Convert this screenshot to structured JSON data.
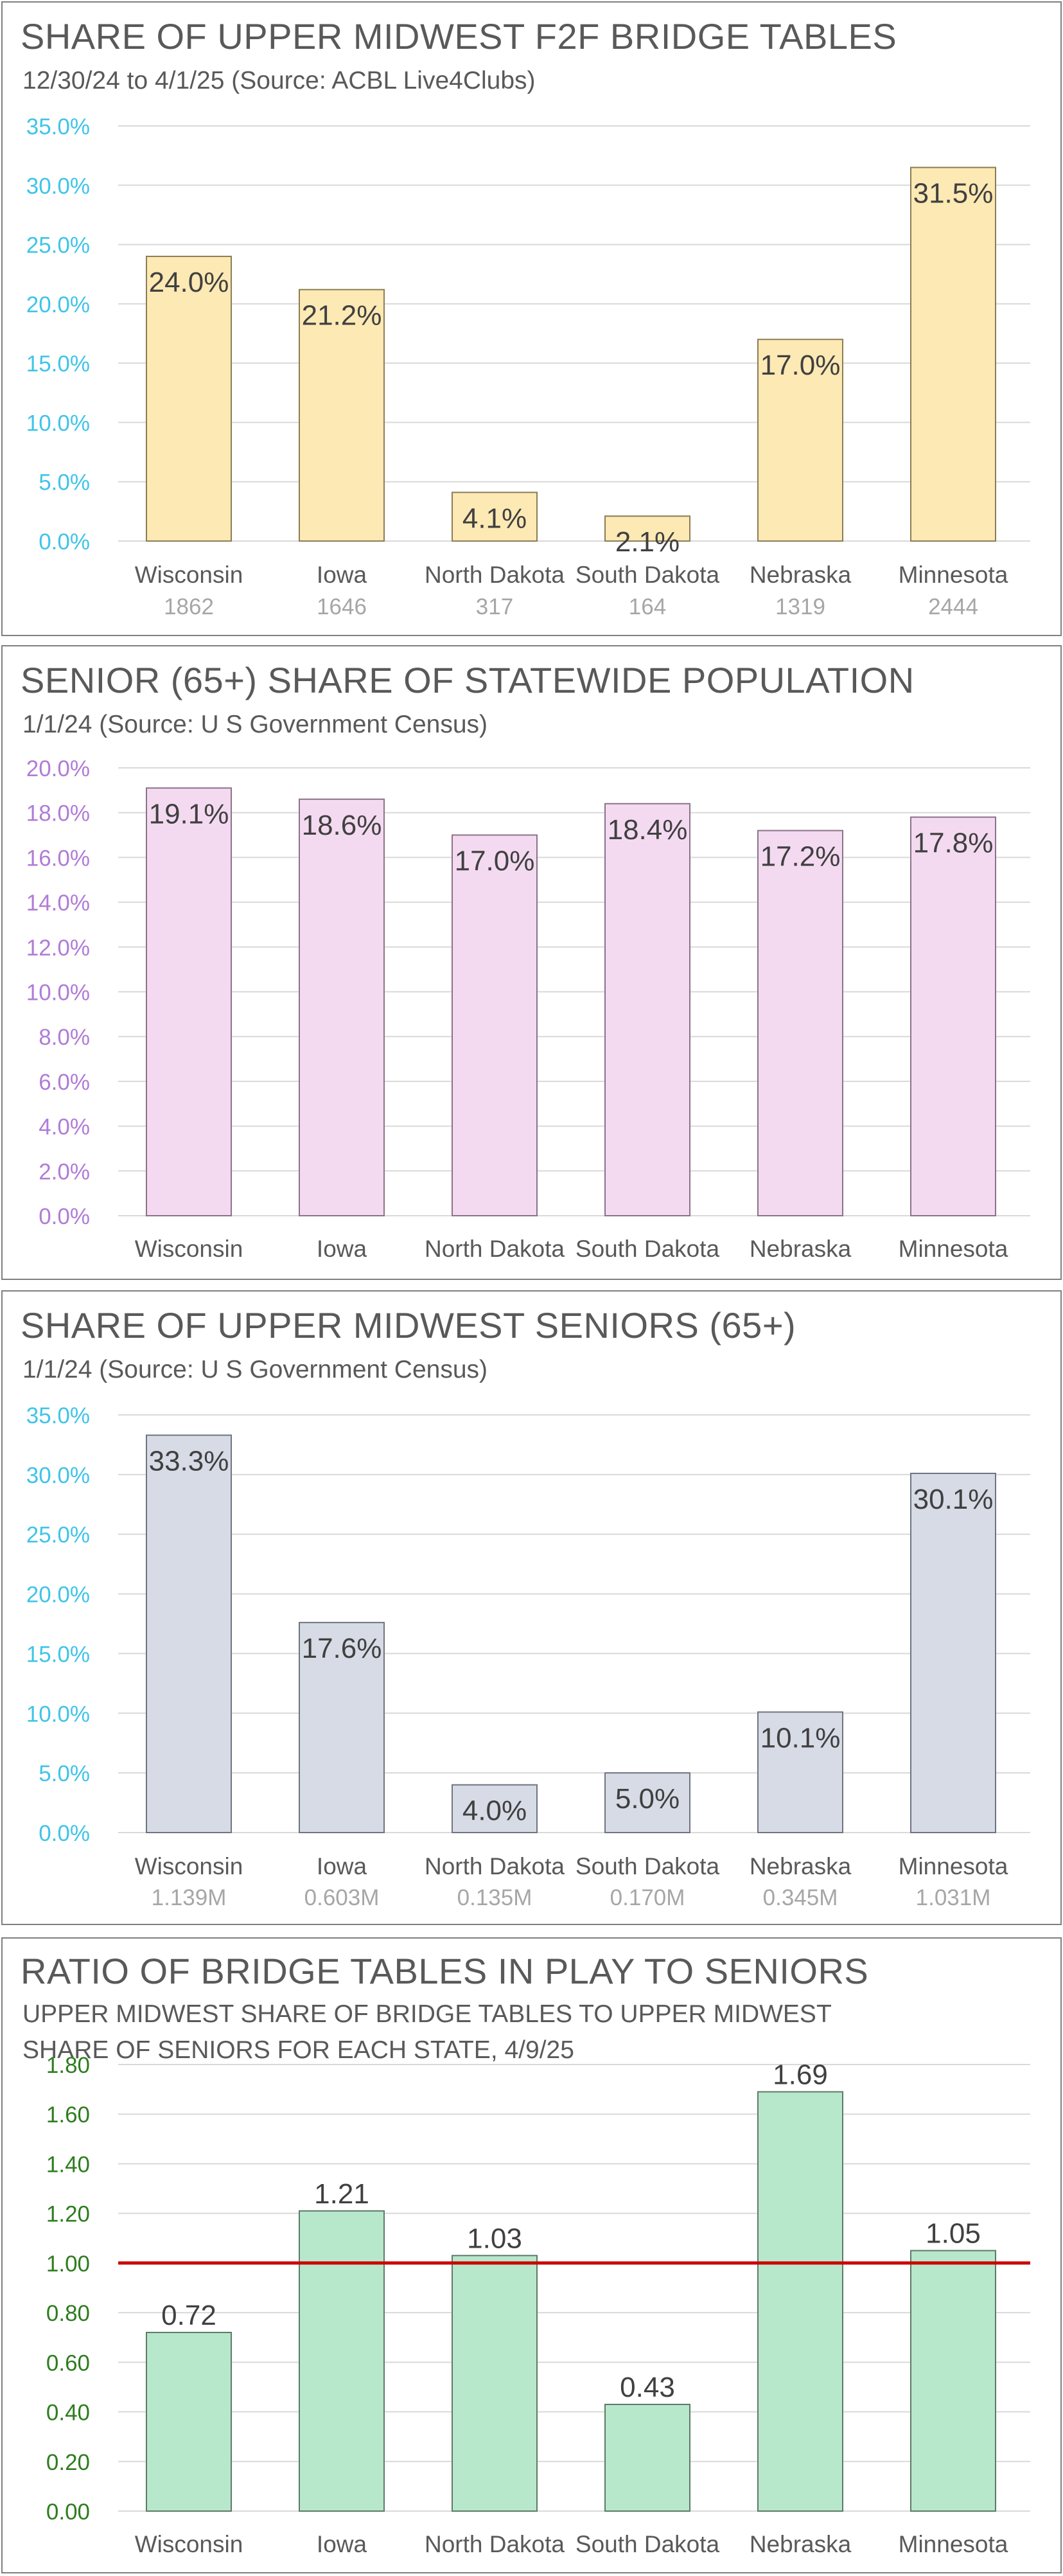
{
  "charts": [
    {
      "title": "SHARE OF UPPER MIDWEST F2F BRIDGE TABLES",
      "subtitle_lines": [
        "12/30/24 to 4/1/25 (Source: ACBL Live4Clubs)"
      ],
      "axis_color": "#40c4e8",
      "bar_fill": "#fde9b4",
      "bar_stroke": "#8b7d55"
    },
    {
      "title": "SENIOR (65+) SHARE OF STATEWIDE POPULATION",
      "subtitle_lines": [
        "1/1/24 (Source: U S Government Census)"
      ],
      "axis_color": "#b07cd6",
      "bar_fill": "#f4daf1",
      "bar_stroke": "#8a7389"
    },
    {
      "title": "SHARE OF UPPER MIDWEST SENIORS (65+)",
      "subtitle_lines": [
        "1/1/24 (Source: U S Government Census)"
      ],
      "axis_color": "#40c4e8",
      "bar_fill": "#d6dbe6",
      "bar_stroke": "#6f7480"
    },
    {
      "title": "RATIO OF BRIDGE TABLES IN PLAY TO SENIORS",
      "subtitle_lines": [
        "UPPER MIDWEST SHARE OF BRIDGE TABLES TO UPPER MIDWEST",
        "SHARE OF SENIORS FOR EACH STATE, 4/9/25"
      ],
      "axis_color": "#2e7d1f",
      "bar_fill": "#b8e8cc",
      "bar_stroke": "#5e7a68",
      "reference_line_color": "#cc0000"
    }
  ],
  "chart_data": [
    {
      "type": "bar",
      "title": "SHARE OF UPPER MIDWEST F2F BRIDGE TABLES",
      "subtitle": "12/30/24 to 4/1/25 (Source: ACBL Live4Clubs)",
      "categories": [
        "Wisconsin",
        "Iowa",
        "North Dakota",
        "South Dakota",
        "Nebraska",
        "Minnesota"
      ],
      "category_sublabels": [
        "1862",
        "1646",
        "317",
        "164",
        "1319",
        "2444"
      ],
      "values": [
        24.0,
        21.2,
        4.1,
        2.1,
        17.0,
        31.5
      ],
      "data_labels": [
        "24.0%",
        "21.2%",
        "4.1%",
        "2.1%",
        "17.0%",
        "31.5%"
      ],
      "ylim": [
        0,
        35
      ],
      "y_ticks": [
        0,
        5,
        10,
        15,
        20,
        25,
        30,
        35
      ],
      "y_tick_labels": [
        "0.0%",
        "5.0%",
        "10.0%",
        "15.0%",
        "20.0%",
        "25.0%",
        "30.0%",
        "35.0%"
      ],
      "grid": true
    },
    {
      "type": "bar",
      "title": "SENIOR (65+) SHARE OF STATEWIDE POPULATION",
      "subtitle": "1/1/24 (Source: U S Government Census)",
      "categories": [
        "Wisconsin",
        "Iowa",
        "North Dakota",
        "South Dakota",
        "Nebraska",
        "Minnesota"
      ],
      "category_sublabels": [],
      "values": [
        19.1,
        18.6,
        17.0,
        18.4,
        17.2,
        17.8
      ],
      "data_labels": [
        "19.1%",
        "18.6%",
        "17.0%",
        "18.4%",
        "17.2%",
        "17.8%"
      ],
      "ylim": [
        0,
        20
      ],
      "y_ticks": [
        0,
        2,
        4,
        6,
        8,
        10,
        12,
        14,
        16,
        18,
        20
      ],
      "y_tick_labels": [
        "0.0%",
        "2.0%",
        "4.0%",
        "6.0%",
        "8.0%",
        "10.0%",
        "12.0%",
        "14.0%",
        "16.0%",
        "18.0%",
        "20.0%"
      ],
      "grid": true
    },
    {
      "type": "bar",
      "title": "SHARE OF UPPER MIDWEST SENIORS (65+)",
      "subtitle": "1/1/24 (Source: U S Government Census)",
      "categories": [
        "Wisconsin",
        "Iowa",
        "North Dakota",
        "South Dakota",
        "Nebraska",
        "Minnesota"
      ],
      "category_sublabels": [
        "1.139M",
        "0.603M",
        "0.135M",
        "0.170M",
        "0.345M",
        "1.031M"
      ],
      "values": [
        33.3,
        17.6,
        4.0,
        5.0,
        10.1,
        30.1
      ],
      "data_labels": [
        "33.3%",
        "17.6%",
        "4.0%",
        "5.0%",
        "10.1%",
        "30.1%"
      ],
      "ylim": [
        0,
        35
      ],
      "y_ticks": [
        0,
        5,
        10,
        15,
        20,
        25,
        30,
        35
      ],
      "y_tick_labels": [
        "0.0%",
        "5.0%",
        "10.0%",
        "15.0%",
        "20.0%",
        "25.0%",
        "30.0%",
        "35.0%"
      ],
      "grid": true
    },
    {
      "type": "bar",
      "title": "RATIO OF BRIDGE TABLES IN PLAY TO SENIORS",
      "subtitle": "UPPER MIDWEST SHARE OF BRIDGE TABLES TO UPPER MIDWEST SHARE OF SENIORS FOR EACH STATE, 4/9/25",
      "categories": [
        "Wisconsin",
        "Iowa",
        "North Dakota",
        "South Dakota",
        "Nebraska",
        "Minnesota"
      ],
      "category_sublabels": [],
      "values": [
        0.72,
        1.21,
        1.03,
        0.43,
        1.69,
        1.05
      ],
      "data_labels": [
        "0.72",
        "1.21",
        "1.03",
        "0.43",
        "1.69",
        "1.05"
      ],
      "ylim": [
        0,
        1.8
      ],
      "y_ticks": [
        0,
        0.2,
        0.4,
        0.6,
        0.8,
        1.0,
        1.2,
        1.4,
        1.6,
        1.8
      ],
      "y_tick_labels": [
        "0.00",
        "0.20",
        "0.40",
        "0.60",
        "0.80",
        "1.00",
        "1.20",
        "1.40",
        "1.60",
        "1.80"
      ],
      "reference_line": 1.0,
      "grid": true
    }
  ]
}
